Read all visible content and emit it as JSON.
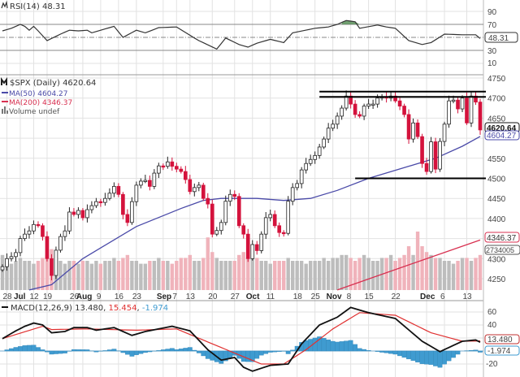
{
  "colors": {
    "up_fill": "#ffffff",
    "down_fill": "#d4123c",
    "ma50": "#4a4aa8",
    "ma200": "#d83050",
    "volume_up": "#bdbdbd",
    "volume_down": "#f0b3bb",
    "macd_line": "#111111",
    "signal_line": "#e03030",
    "histogram": "#3f9bd0",
    "rsi_fill": "#4f8a4f"
  },
  "rsi": {
    "legend_title": "RSI(14)",
    "legend_value": "48.31",
    "value_label": "48.31",
    "ticks": [
      "90",
      "70",
      "30",
      "10"
    ]
  },
  "price": {
    "legend_title": "$SPX (Daily)",
    "legend_value": "4620.64",
    "ma50_label": "MA(50)",
    "ma50_value": "4604.27",
    "ma200_label": "MA(200)",
    "ma200_value": "4346.37",
    "volume_label": "Volume undef",
    "last_label": "4620.64",
    "ma50_tag": "4604.27",
    "ma200_tag": "4346.37",
    "volume_tag": "2734005",
    "ticks": [
      "4750",
      "4700",
      "4650",
      "4550",
      "4500",
      "4450",
      "4400",
      "4300",
      "4250"
    ]
  },
  "macd": {
    "legend_title": "MACD(12,26,9)",
    "legend_macd": "13.480",
    "legend_signal": "15.454",
    "legend_hist": "-1.974",
    "macd_tag": "13.480",
    "hist_tag": "-1.974",
    "ticks": [
      "60",
      "40",
      "-20"
    ]
  },
  "chart_data": {
    "type": "candlestick",
    "ylim": [
      4222,
      4758
    ],
    "closes": [
      4280,
      4300,
      4305,
      4315,
      4350,
      4361,
      4369,
      4385,
      4382,
      4355,
      4300,
      4258,
      4321,
      4355,
      4369,
      4416,
      4410,
      4420,
      4402,
      4422,
      4432,
      4442,
      4440,
      4450,
      4463,
      4480,
      4460,
      4410,
      4390,
      4442,
      4483,
      4493,
      4495,
      4480,
      4513,
      4531,
      4530,
      4541,
      4530,
      4523,
      4517,
      4497,
      4467,
      4477,
      4483,
      4450,
      4436,
      4361,
      4370,
      4390,
      4443,
      4460,
      4455,
      4382,
      4361,
      4300,
      4335,
      4320,
      4361,
      4402,
      4410,
      4382,
      4365,
      4363,
      4443,
      4477,
      4487,
      4521,
      4537,
      4547,
      4557,
      4578,
      4598,
      4625,
      4635,
      4655,
      4675,
      4705,
      4685,
      4659,
      4655,
      4680,
      4685,
      4685,
      4700,
      4703,
      4700,
      4705,
      4693,
      4680,
      4659,
      4598,
      4638,
      4604,
      4537,
      4517,
      4591,
      4523,
      4592,
      4635,
      4693,
      4695,
      4673,
      4700,
      4638,
      4705,
      4690,
      4620.64
    ],
    "volume_relative": [
      0.6,
      0.5,
      0.45,
      0.5,
      0.55,
      0.5,
      0.5,
      0.45,
      0.5,
      0.55,
      0.6,
      0.7,
      0.55,
      0.5,
      0.45,
      0.5,
      0.5,
      0.45,
      0.5,
      0.5,
      0.45,
      0.5,
      0.45,
      0.5,
      0.5,
      0.55,
      0.5,
      0.55,
      0.6,
      0.5,
      0.5,
      0.45,
      0.45,
      0.5,
      0.5,
      0.55,
      0.5,
      0.5,
      0.45,
      0.5,
      0.55,
      0.55,
      0.6,
      0.5,
      0.5,
      0.55,
      0.9,
      0.65,
      0.55,
      0.5,
      0.5,
      0.5,
      0.5,
      0.6,
      0.65,
      0.7,
      0.6,
      0.55,
      0.5,
      0.5,
      0.45,
      0.5,
      0.5,
      0.5,
      0.55,
      0.5,
      0.5,
      0.5,
      0.45,
      0.5,
      0.5,
      0.5,
      0.55,
      0.5,
      0.55,
      0.55,
      0.6,
      0.6,
      0.55,
      0.5,
      0.55,
      0.6,
      0.55,
      0.5,
      0.5,
      0.55,
      0.55,
      0.6,
      0.5,
      0.55,
      0.6,
      0.75,
      0.6,
      1.0,
      0.75,
      0.65,
      0.6,
      0.55,
      0.55,
      0.5,
      0.5,
      0.45,
      0.5,
      0.55,
      0.55,
      0.5,
      0.55,
      0.6
    ],
    "ma50": [
      [
        6,
        4222
      ],
      [
        11,
        4235
      ],
      [
        18,
        4300
      ],
      [
        30,
        4380
      ],
      [
        40,
        4425
      ],
      [
        45,
        4445
      ],
      [
        49,
        4450
      ],
      [
        57,
        4450
      ],
      [
        63,
        4445
      ],
      [
        69,
        4450
      ],
      [
        75,
        4470
      ],
      [
        82,
        4500
      ],
      [
        91,
        4530
      ],
      [
        97,
        4550
      ],
      [
        103,
        4580
      ],
      [
        107,
        4604.27
      ]
    ],
    "ma200": [
      [
        75,
        4222
      ],
      [
        86,
        4265
      ],
      [
        107,
        4346.37
      ]
    ],
    "horizontal_lines": [
      {
        "value": 4716,
        "from": 71
      },
      {
        "value": 4703,
        "from": 71
      },
      {
        "value": 4500,
        "from": 79
      }
    ],
    "x_ticks": [
      {
        "label": "28",
        "i": 1
      },
      {
        "label": "Jul",
        "i": 4,
        "bold": true
      },
      {
        "label": "12",
        "i": 7
      },
      {
        "label": "19",
        "i": 10
      },
      {
        "label": "26",
        "i": 16
      },
      {
        "label": "Aug",
        "i": 18,
        "bold": true
      },
      {
        "label": "9",
        "i": 22
      },
      {
        "label": "16",
        "i": 26
      },
      {
        "label": "23",
        "i": 30
      },
      {
        "label": "Sep",
        "i": 36,
        "bold": true
      },
      {
        "label": "7",
        "i": 39
      },
      {
        "label": "13",
        "i": 42
      },
      {
        "label": "20",
        "i": 47
      },
      {
        "label": "27",
        "i": 52
      },
      {
        "label": "Oct",
        "i": 56,
        "bold": true
      },
      {
        "label": "11",
        "i": 60
      },
      {
        "label": "18",
        "i": 66
      },
      {
        "label": "25",
        "i": 70
      },
      {
        "label": "Nov",
        "i": 74,
        "bold": true
      },
      {
        "label": "8",
        "i": 78
      },
      {
        "label": "15",
        "i": 82
      },
      {
        "label": "22",
        "i": 88
      },
      {
        "label": "Dec",
        "i": 95,
        "bold": true
      },
      {
        "label": "6",
        "i": 99
      },
      {
        "label": "13",
        "i": 104
      }
    ],
    "rsi": [
      [
        0,
        60
      ],
      [
        2,
        64
      ],
      [
        4,
        70
      ],
      [
        5,
        67
      ],
      [
        6,
        61
      ],
      [
        7,
        67
      ],
      [
        8,
        60
      ],
      [
        10,
        45
      ],
      [
        13,
        55
      ],
      [
        15,
        61
      ],
      [
        17,
        60
      ],
      [
        19,
        61
      ],
      [
        20,
        57
      ],
      [
        22,
        61
      ],
      [
        25,
        67
      ],
      [
        27,
        50
      ],
      [
        30,
        61
      ],
      [
        32,
        57
      ],
      [
        35,
        65
      ],
      [
        39,
        66
      ],
      [
        43,
        49
      ],
      [
        44,
        45
      ],
      [
        48,
        32
      ],
      [
        50,
        49
      ],
      [
        53,
        39
      ],
      [
        55,
        35
      ],
      [
        57,
        41
      ],
      [
        60,
        47
      ],
      [
        63,
        42
      ],
      [
        65,
        57
      ],
      [
        70,
        64
      ],
      [
        73,
        66
      ],
      [
        75,
        70
      ],
      [
        77,
        76
      ],
      [
        79,
        74
      ],
      [
        80,
        64
      ],
      [
        84,
        69
      ],
      [
        86,
        66
      ],
      [
        88,
        64
      ],
      [
        91,
        45
      ],
      [
        94,
        39
      ],
      [
        96,
        42
      ],
      [
        99,
        55
      ],
      [
        103,
        54
      ],
      [
        106,
        54
      ],
      [
        107,
        48.31
      ]
    ],
    "macd": [
      [
        0,
        19
      ],
      [
        3,
        31
      ],
      [
        5,
        38
      ],
      [
        7,
        43
      ],
      [
        9,
        40
      ],
      [
        11,
        28
      ],
      [
        14,
        30
      ],
      [
        16,
        36
      ],
      [
        19,
        36
      ],
      [
        21,
        32
      ],
      [
        25,
        36
      ],
      [
        29,
        24
      ],
      [
        32,
        30
      ],
      [
        38,
        38
      ],
      [
        42,
        31
      ],
      [
        46,
        2
      ],
      [
        49,
        -14
      ],
      [
        52,
        -10
      ],
      [
        54,
        -25
      ],
      [
        56,
        -31
      ],
      [
        60,
        -22
      ],
      [
        64,
        -20
      ],
      [
        67,
        11
      ],
      [
        71,
        40
      ],
      [
        75,
        52
      ],
      [
        78,
        67
      ],
      [
        82,
        59
      ],
      [
        88,
        50
      ],
      [
        94,
        15
      ],
      [
        98,
        -1
      ],
      [
        103,
        15
      ],
      [
        106,
        17
      ],
      [
        107,
        13.48
      ]
    ],
    "signal": [
      [
        0,
        19
      ],
      [
        9,
        38
      ],
      [
        11,
        33
      ],
      [
        19,
        34
      ],
      [
        30,
        32
      ],
      [
        39,
        34
      ],
      [
        47,
        11
      ],
      [
        53,
        -6
      ],
      [
        58,
        -20
      ],
      [
        63,
        -20
      ],
      [
        68,
        2
      ],
      [
        74,
        34
      ],
      [
        80,
        59
      ],
      [
        88,
        55
      ],
      [
        96,
        28
      ],
      [
        103,
        15
      ],
      [
        107,
        15.454
      ]
    ]
  }
}
